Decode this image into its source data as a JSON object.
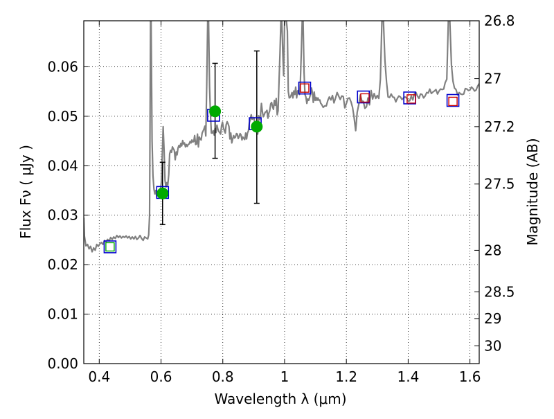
{
  "chart_data": {
    "type": "scatter",
    "xlabel": "Wavelength  λ (μm)",
    "ylabel": "Flux  Fν  ( μJy )",
    "y2label": "Magnitude (AB)",
    "xlim": [
      0.35,
      1.63
    ],
    "ylim": [
      0.0,
      0.0693
    ],
    "x_ticks": [
      0.4,
      0.6,
      0.8,
      1.0,
      1.2,
      1.4,
      1.6
    ],
    "x_tick_labels": [
      "0.4",
      "0.6",
      "0.8",
      "1",
      "1.2",
      "1.4",
      "1.6"
    ],
    "y_ticks": [
      0.0,
      0.01,
      0.02,
      0.03,
      0.04,
      0.05,
      0.06
    ],
    "y_tick_labels": [
      "0.00",
      "0.01",
      "0.02",
      "0.03",
      "0.04",
      "0.05",
      "0.06"
    ],
    "y2_ticks": [
      {
        "label": "26.8",
        "flux": 0.0693
      },
      {
        "label": "27",
        "flux": 0.0576
      },
      {
        "label": "27.2",
        "flux": 0.0479
      },
      {
        "label": "27.5",
        "flux": 0.0363
      },
      {
        "label": "28",
        "flux": 0.0229
      },
      {
        "label": "28.5",
        "flux": 0.0145
      },
      {
        "label": "29",
        "flux": 0.0091
      },
      {
        "label": "30",
        "flux": 0.0036
      }
    ],
    "grid": true,
    "colors": {
      "spectrum": "#808080",
      "model_photometry": "#0000cc",
      "observed": "#00aa00",
      "upper_band_marker": "#cc0000",
      "error_bar": "#000000"
    },
    "series": [
      {
        "role": "model-spectrum",
        "x": [
          0.35,
          0.352,
          0.357,
          0.362,
          0.367,
          0.372,
          0.377,
          0.382,
          0.387,
          0.392,
          0.397,
          0.402,
          0.407,
          0.412,
          0.417,
          0.422,
          0.427,
          0.432,
          0.437,
          0.442,
          0.447,
          0.452,
          0.457,
          0.462,
          0.467,
          0.472,
          0.477,
          0.482,
          0.487,
          0.492,
          0.497,
          0.502,
          0.507,
          0.512,
          0.517,
          0.522,
          0.527,
          0.532,
          0.537,
          0.542,
          0.547,
          0.552,
          0.557,
          0.56,
          0.563,
          0.566,
          0.568,
          0.571,
          0.574,
          0.577,
          0.58,
          0.583,
          0.586,
          0.589,
          0.592,
          0.595,
          0.598,
          0.601,
          0.604,
          0.607,
          0.61,
          0.613,
          0.616,
          0.619,
          0.622,
          0.625,
          0.628,
          0.631,
          0.634,
          0.637,
          0.64,
          0.643,
          0.646,
          0.649,
          0.652,
          0.655,
          0.658,
          0.661,
          0.664,
          0.667,
          0.67,
          0.673,
          0.676,
          0.679,
          0.682,
          0.685,
          0.688,
          0.691,
          0.694,
          0.697,
          0.7,
          0.703,
          0.706,
          0.709,
          0.712,
          0.715,
          0.718,
          0.721,
          0.724,
          0.727,
          0.73,
          0.733,
          0.736,
          0.739,
          0.742,
          0.745,
          0.748,
          0.751,
          0.754,
          0.757,
          0.76,
          0.763,
          0.766,
          0.769,
          0.772,
          0.775,
          0.778,
          0.781,
          0.784,
          0.787,
          0.79,
          0.793,
          0.796,
          0.799,
          0.802,
          0.805,
          0.808,
          0.811,
          0.814,
          0.817,
          0.82,
          0.823,
          0.826,
          0.829,
          0.832,
          0.835,
          0.838,
          0.841,
          0.844,
          0.847,
          0.85,
          0.853,
          0.856,
          0.859,
          0.862,
          0.865,
          0.868,
          0.871,
          0.874,
          0.877,
          0.88,
          0.883,
          0.886,
          0.889,
          0.892,
          0.895,
          0.898,
          0.901,
          0.904,
          0.907,
          0.91,
          0.913,
          0.916,
          0.919,
          0.922,
          0.925,
          0.928,
          0.931,
          0.934,
          0.937,
          0.94,
          0.943,
          0.946,
          0.949,
          0.952,
          0.955,
          0.958,
          0.961,
          0.964,
          0.967,
          0.97,
          0.973,
          0.976,
          0.979,
          0.982,
          0.985,
          0.988,
          0.991,
          0.994,
          0.997,
          1.0,
          1.003,
          1.006,
          1.009,
          1.012,
          1.015,
          1.018,
          1.021,
          1.024,
          1.027,
          1.03,
          1.033,
          1.036,
          1.039,
          1.042,
          1.045,
          1.048,
          1.051,
          1.054,
          1.057,
          1.06,
          1.063,
          1.066,
          1.069,
          1.072,
          1.075,
          1.078,
          1.081,
          1.084,
          1.087,
          1.09,
          1.093,
          1.096,
          1.099,
          1.102,
          1.105,
          1.108,
          1.111,
          1.114,
          1.117,
          1.12,
          1.125,
          1.13,
          1.135,
          1.14,
          1.145,
          1.15,
          1.155,
          1.16,
          1.165,
          1.17,
          1.175,
          1.18,
          1.185,
          1.19,
          1.195,
          1.2,
          1.205,
          1.21,
          1.215,
          1.22,
          1.225,
          1.23,
          1.235,
          1.24,
          1.245,
          1.25,
          1.255,
          1.26,
          1.265,
          1.27,
          1.275,
          1.28,
          1.285,
          1.29,
          1.295,
          1.3,
          1.305,
          1.31,
          1.315,
          1.32,
          1.325,
          1.33,
          1.335,
          1.34,
          1.345,
          1.35,
          1.355,
          1.36,
          1.365,
          1.37,
          1.375,
          1.38,
          1.385,
          1.39,
          1.395,
          1.4,
          1.405,
          1.41,
          1.415,
          1.42,
          1.425,
          1.43,
          1.435,
          1.44,
          1.445,
          1.45,
          1.455,
          1.46,
          1.465,
          1.47,
          1.475,
          1.48,
          1.485,
          1.49,
          1.495,
          1.5,
          1.505,
          1.51,
          1.515,
          1.52,
          1.525,
          1.53,
          1.535,
          1.54,
          1.545,
          1.55,
          1.555,
          1.56,
          1.565,
          1.57,
          1.575,
          1.58,
          1.585,
          1.59,
          1.595,
          1.6,
          1.605,
          1.61,
          1.615,
          1.62,
          1.625,
          1.63
        ],
        "y": [
          0.0295,
          0.0258,
          0.0238,
          0.0241,
          0.0232,
          0.0237,
          0.0226,
          0.0234,
          0.0229,
          0.0241,
          0.0237,
          0.0242,
          0.0245,
          0.0241,
          0.0249,
          0.0246,
          0.0251,
          0.0248,
          0.0255,
          0.0251,
          0.0256,
          0.0253,
          0.0259,
          0.0255,
          0.0258,
          0.0254,
          0.0257,
          0.0255,
          0.0258,
          0.0254,
          0.0257,
          0.0252,
          0.0256,
          0.0252,
          0.0257,
          0.0251,
          0.0254,
          0.0259,
          0.0253,
          0.0249,
          0.0256,
          0.0254,
          0.0252,
          0.026,
          0.03,
          0.0693,
          0.0693,
          0.045,
          0.038,
          0.0353,
          0.0343,
          0.035,
          0.0338,
          0.0347,
          0.034,
          0.0343,
          0.0348,
          0.0367,
          0.042,
          0.0479,
          0.043,
          0.037,
          0.0357,
          0.0366,
          0.0361,
          0.0382,
          0.0424,
          0.0431,
          0.0427,
          0.0438,
          0.0434,
          0.0431,
          0.0412,
          0.0428,
          0.0422,
          0.0436,
          0.0441,
          0.0437,
          0.0445,
          0.044,
          0.0451,
          0.0444,
          0.0446,
          0.0438,
          0.0443,
          0.0439,
          0.0443,
          0.0444,
          0.0449,
          0.0446,
          0.0452,
          0.0448,
          0.0449,
          0.0461,
          0.0443,
          0.0444,
          0.0464,
          0.0438,
          0.0458,
          0.0454,
          0.0452,
          0.0466,
          0.047,
          0.0474,
          0.048,
          0.046,
          0.056,
          0.0693,
          0.0693,
          0.056,
          0.0504,
          0.0466,
          0.0466,
          0.0471,
          0.0462,
          0.0475,
          0.0467,
          0.0482,
          0.0474,
          0.0469,
          0.0467,
          0.0464,
          0.0481,
          0.0488,
          0.0477,
          0.0471,
          0.0466,
          0.0483,
          0.0489,
          0.0485,
          0.0479,
          0.0454,
          0.0466,
          0.0446,
          0.0454,
          0.0461,
          0.0456,
          0.0458,
          0.0465,
          0.0464,
          0.0455,
          0.0459,
          0.0465,
          0.0462,
          0.0452,
          0.0458,
          0.0455,
          0.0453,
          0.0466,
          0.0454,
          0.0466,
          0.0471,
          0.0487,
          0.0493,
          0.0503,
          0.0494,
          0.0495,
          0.0497,
          0.0483,
          0.0488,
          0.0472,
          0.0464,
          0.0501,
          0.0493,
          0.0502,
          0.0526,
          0.051,
          0.0499,
          0.0503,
          0.0508,
          0.0509,
          0.0512,
          0.0496,
          0.0506,
          0.0511,
          0.0525,
          0.0528,
          0.0519,
          0.0514,
          0.0532,
          0.0522,
          0.0536,
          0.0503,
          0.0511,
          0.0569,
          0.0627,
          0.0693,
          0.0693,
          0.063,
          0.0582,
          0.0693,
          0.0693,
          0.0693,
          0.0672,
          0.055,
          0.0537,
          0.0538,
          0.0542,
          0.0548,
          0.0537,
          0.0551,
          0.0544,
          0.0559,
          0.0537,
          0.0551,
          0.0552,
          0.0544,
          0.0567,
          0.0629,
          0.0693,
          0.0693,
          0.0588,
          0.0544,
          0.0539,
          0.0526,
          0.0535,
          0.0532,
          0.0538,
          0.0544,
          0.0557,
          0.0548,
          0.0528,
          0.0549,
          0.0532,
          0.0538,
          0.0532,
          0.0537,
          0.0532,
          0.0533,
          0.0526,
          0.0524,
          0.0518,
          0.0521,
          0.0521,
          0.0532,
          0.0539,
          0.0533,
          0.0542,
          0.0527,
          0.0537,
          0.0548,
          0.0541,
          0.0534,
          0.0541,
          0.054,
          0.0517,
          0.0526,
          0.0536,
          0.0537,
          0.0529,
          0.0518,
          0.0498,
          0.0471,
          0.0508,
          0.0523,
          0.0543,
          0.0531,
          0.053,
          0.0516,
          0.0519,
          0.0537,
          0.0523,
          0.0552,
          0.0535,
          0.0546,
          0.0536,
          0.0542,
          0.0536,
          0.0575,
          0.0693,
          0.0693,
          0.0612,
          0.0569,
          0.0539,
          0.0538,
          0.0545,
          0.0539,
          0.0538,
          0.0529,
          0.0536,
          0.0541,
          0.0539,
          0.0534,
          0.0537,
          0.0539,
          0.0537,
          0.0531,
          0.0531,
          0.0541,
          0.0533,
          0.0545,
          0.0548,
          0.0541,
          0.0536,
          0.0545,
          0.0544,
          0.0537,
          0.0541,
          0.0548,
          0.0547,
          0.0555,
          0.0546,
          0.0549,
          0.0551,
          0.0554,
          0.0545,
          0.0551,
          0.0555,
          0.0554,
          0.0555,
          0.0568,
          0.0575,
          0.0693,
          0.0693,
          0.0604,
          0.0571,
          0.0557,
          0.0554,
          0.0543,
          0.0548,
          0.0545,
          0.0544,
          0.0545,
          0.0556,
          0.0555,
          0.0552,
          0.0553,
          0.0559,
          0.0556,
          0.0551,
          0.0553,
          0.0561,
          0.0566
        ]
      },
      {
        "role": "model-photometry-squares",
        "x": [
          0.435,
          0.605,
          0.77,
          0.905,
          1.065,
          1.255,
          1.405,
          1.545
        ],
        "y": [
          0.0236,
          0.0346,
          0.0502,
          0.0485,
          0.0557,
          0.0539,
          0.0537,
          0.0532
        ]
      },
      {
        "role": "observed-flux-points",
        "x": [
          0.435,
          0.605,
          0.775,
          0.91,
          1.065,
          1.26,
          1.41,
          1.545
        ],
        "y": [
          0.0236,
          0.0344,
          0.051,
          0.0479,
          0.0557,
          0.0537,
          0.0535,
          0.053
        ],
        "yerr_low": [
          null,
          0.0063,
          0.0095,
          0.0155,
          null,
          null,
          null,
          null
        ],
        "yerr_high": [
          null,
          0.0063,
          0.0097,
          0.0153,
          null,
          null,
          null,
          null
        ],
        "detected": [
          false,
          true,
          true,
          true,
          false,
          false,
          false,
          false
        ]
      }
    ]
  }
}
